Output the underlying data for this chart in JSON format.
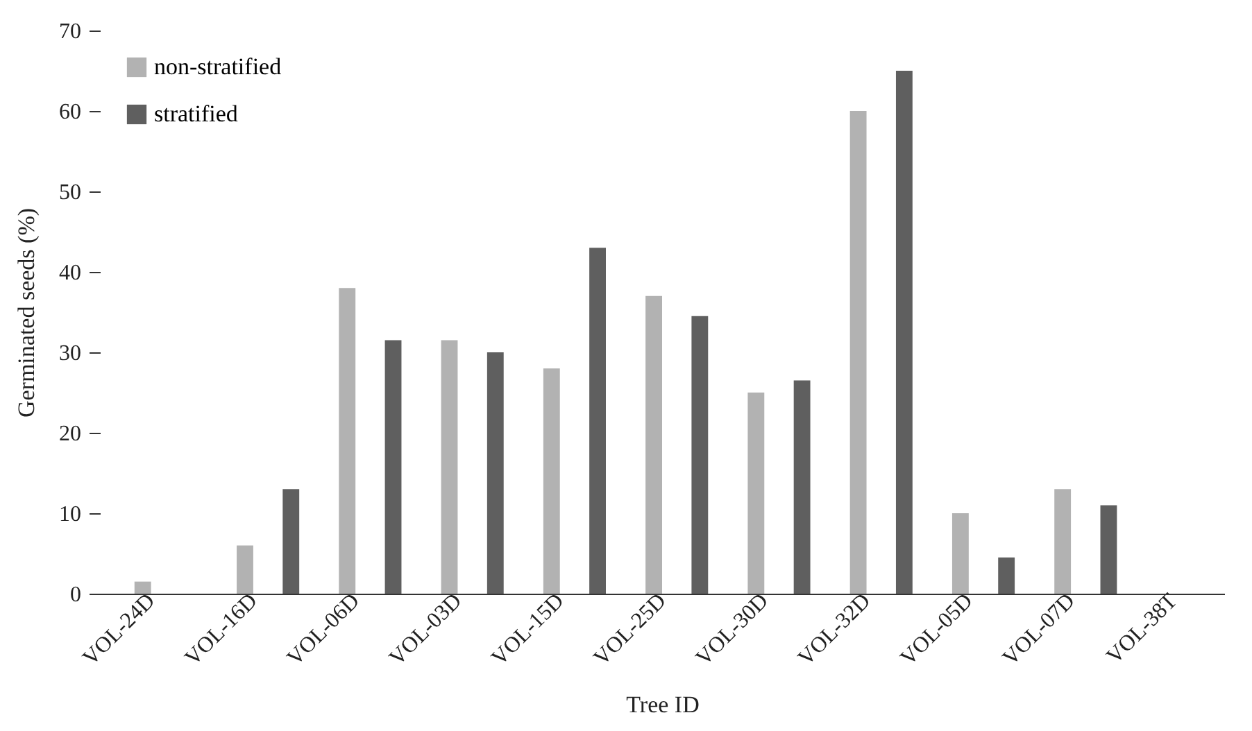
{
  "chart_data": {
    "type": "bar",
    "xlabel": "Tree ID",
    "ylabel": "Germinated seeds (%)",
    "categories": [
      "VOL-24D",
      "VOL-16D",
      "VOL-06D",
      "VOL-03D",
      "VOL-15D",
      "VOL-25D",
      "VOL-30D",
      "VOL-32D",
      "VOL-05D",
      "VOL-07D",
      "VOL-38T"
    ],
    "series": [
      {
        "name": "non-stratified",
        "color": "#b2b2b2",
        "values": [
          1.5,
          6,
          38,
          31.5,
          28,
          37,
          25,
          60,
          10,
          13,
          0
        ]
      },
      {
        "name": "stratified",
        "color": "#5f5f5f",
        "values": [
          0,
          13,
          31.5,
          30,
          43,
          34.5,
          26.5,
          65,
          4.5,
          11,
          0
        ]
      }
    ],
    "ylim": [
      0,
      70
    ],
    "yticks": [
      0,
      10,
      20,
      30,
      40,
      50,
      60,
      70
    ],
    "grid": false,
    "legend": "top left"
  }
}
